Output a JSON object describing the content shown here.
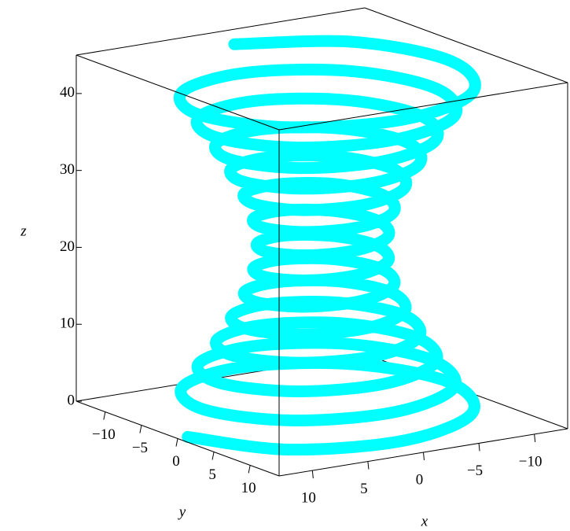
{
  "chart_data": {
    "type": "spacecurve",
    "color": "#00ffff",
    "xlabel": "x",
    "ylabel": "y",
    "zlabel": "z",
    "xlim": [
      -13,
      13
    ],
    "ylim": [
      -14,
      14
    ],
    "zlim": [
      0,
      45
    ],
    "xticks": [
      {
        "value": -10,
        "label": "−10"
      },
      {
        "value": -5,
        "label": "−5"
      },
      0,
      5,
      10
    ],
    "yticks": [
      {
        "value": -10,
        "label": "−10"
      },
      {
        "value": -5,
        "label": "−5"
      },
      0,
      5,
      10
    ],
    "zticks": [
      0,
      10,
      20,
      30,
      40
    ],
    "x": [
      12.1,
      8.4,
      0,
      -8.2,
      -11.4,
      -7.9,
      0,
      7.6,
      10.6,
      7.4,
      0,
      -7.2,
      -9.9,
      -6.9,
      0,
      6.7,
      9.3,
      6.4,
      0,
      -6.2,
      -8.6,
      -6.0,
      0,
      5.7,
      8.0,
      5.5,
      0,
      -5.3,
      -7.4,
      -5.1,
      0,
      4.9,
      6.8,
      4.7,
      0,
      -4.5,
      -6.3,
      -4.4,
      0,
      4.2,
      5.8,
      4.0,
      0,
      -3.9,
      -5.5,
      -3.8,
      0,
      3.7,
      5.2,
      3.6,
      0,
      -3.6,
      -5.0,
      -3.5,
      0,
      3.5,
      5.0,
      3.5,
      0,
      -3.6,
      -5.1,
      -3.6,
      0,
      3.7,
      5.3,
      3.8,
      0,
      -3.9,
      -5.6,
      -4.1,
      0,
      4.2,
      6.0,
      4.4,
      0,
      -4.5,
      -6.5,
      -4.7,
      0,
      4.9,
      7.1,
      5.1,
      0,
      -5.3,
      -7.7,
      -5.5,
      0,
      5.7,
      8.3,
      6.0,
      0,
      -6.2,
      -8.9,
      -6.4,
      0,
      6.7,
      9.6,
      6.9,
      0,
      -7.2,
      -10.3,
      -7.4,
      0,
      7.6,
      11.0,
      7.9,
      0,
      -8.2,
      -11.7,
      -8.4,
      0
    ],
    "y": [
      0,
      8.4,
      11.7,
      8.2,
      0,
      -7.9,
      -11.0,
      -7.6,
      0,
      7.4,
      10.3,
      7.2,
      0,
      -6.9,
      -9.6,
      -6.7,
      0,
      6.4,
      8.9,
      6.2,
      0,
      -6.0,
      -8.3,
      -5.7,
      0,
      5.5,
      7.7,
      5.3,
      0,
      -5.1,
      -7.1,
      -4.9,
      0,
      4.7,
      6.5,
      4.5,
      0,
      -4.4,
      -6.0,
      -4.2,
      0,
      4.0,
      5.6,
      3.9,
      0,
      -3.8,
      -5.3,
      -3.7,
      0,
      3.6,
      5.1,
      3.6,
      0,
      -3.5,
      -5.0,
      -3.5,
      0,
      3.5,
      5.0,
      3.6,
      0,
      -3.6,
      -5.2,
      -3.7,
      0,
      3.8,
      5.5,
      3.9,
      0,
      -4.1,
      -5.8,
      -4.2,
      0,
      4.4,
      6.3,
      4.5,
      0,
      -4.7,
      -6.8,
      -4.9,
      0,
      5.1,
      7.4,
      5.3,
      0,
      -5.5,
      -8.0,
      -5.7,
      0,
      6.0,
      8.6,
      6.2,
      0,
      -6.4,
      -9.3,
      -6.7,
      0,
      6.9,
      9.9,
      7.2,
      0,
      -7.4,
      -10.6,
      -7.6,
      0,
      7.9,
      11.4,
      8.2,
      0,
      -8.4,
      -12.1
    ],
    "z": [
      0,
      0.4,
      0.8,
      1.2,
      1.6,
      2.0,
      2.4,
      2.8,
      3.2,
      3.6,
      4.0,
      4.4,
      4.8,
      5.2,
      5.6,
      6.0,
      6.4,
      6.8,
      7.2,
      7.6,
      8.0,
      8.4,
      8.8,
      9.2,
      9.6,
      10.0,
      10.4,
      10.8,
      11.2,
      11.6,
      12.0,
      12.4,
      12.8,
      13.2,
      13.6,
      14.0,
      14.4,
      14.8,
      15.2,
      15.6,
      16.0,
      16.4,
      16.8,
      17.2,
      17.6,
      18.0,
      18.4,
      18.8,
      19.2,
      19.6,
      20.0,
      20.4,
      20.8,
      21.2,
      21.6,
      22.0,
      22.4,
      22.8,
      23.2,
      23.6,
      24.0,
      24.4,
      24.8,
      25.2,
      25.6,
      26.0,
      26.4,
      26.8,
      27.2,
      27.6,
      28.0,
      28.4,
      28.8,
      29.2,
      29.6,
      30.0,
      30.4,
      30.8,
      31.2,
      31.6,
      32.0,
      32.4,
      32.8,
      33.2,
      33.6,
      34.0,
      34.4,
      34.8,
      35.2,
      35.6,
      36.0,
      36.4,
      36.8,
      37.2,
      37.6,
      38.0,
      38.4,
      38.8,
      39.2,
      39.6,
      40.0,
      40.4,
      40.8,
      41.2,
      41.6,
      42.0,
      42.4,
      42.8,
      43.2,
      43.6,
      44.0
    ]
  }
}
